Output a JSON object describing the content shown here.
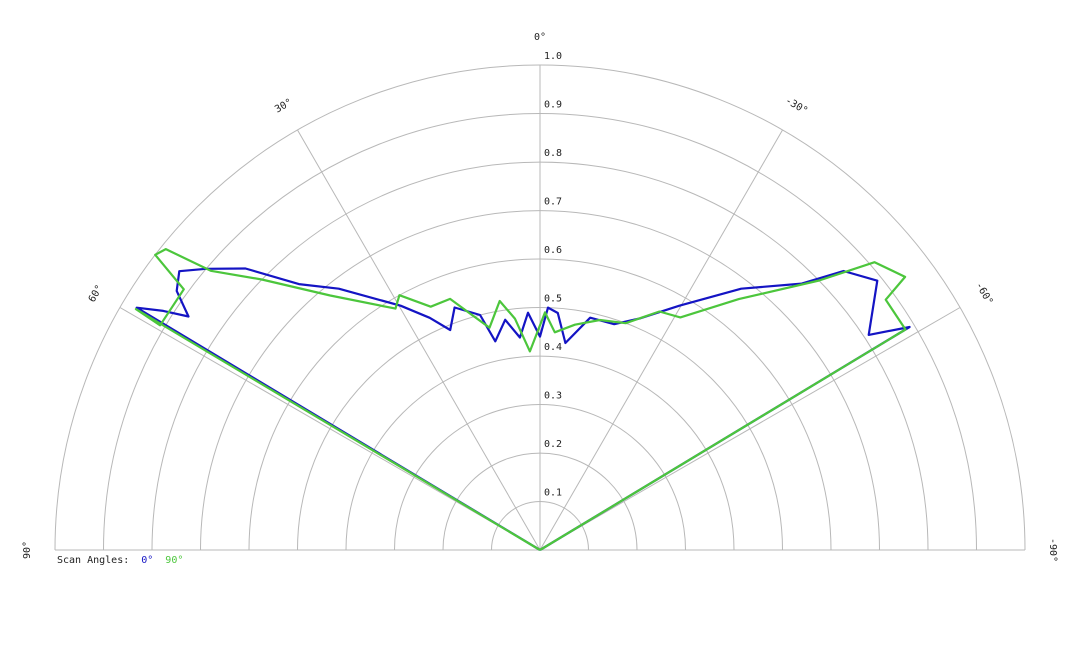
{
  "chart_data": {
    "type": "polar",
    "legend_title": "Scan Angles:",
    "grid": true,
    "xlim": [
      -90,
      90
    ],
    "xticks": [
      {
        "value": 90,
        "label": "90°"
      },
      {
        "value": 60,
        "label": "60°"
      },
      {
        "value": 30,
        "label": "30°"
      },
      {
        "value": 0,
        "label": "0°"
      },
      {
        "value": -30,
        "label": "-30°"
      },
      {
        "value": -60,
        "label": "-60°"
      },
      {
        "value": -90,
        "label": "-90°"
      }
    ],
    "ylim": [
      0,
      1
    ],
    "yticks": [
      0.1,
      0.2,
      0.3,
      0.4,
      0.5,
      0.6,
      0.7,
      0.8,
      0.9,
      {
        "value": 1,
        "label": "1.0"
      }
    ],
    "series": [
      {
        "name": "0°",
        "color": "#1414c4",
        "x": [
          59,
          59,
          57.6,
          56.4,
          54.5,
          52.3,
          49.9,
          46.3,
          42.2,
          37.6,
          29.7,
          25.4,
          22.2,
          19.4,
          14.3,
          12.1,
          8.6,
          5.4,
          2.9,
          0,
          -1.9,
          -4.3,
          -7.0,
          -12.2,
          -18.2,
          -23.3,
          -29.7,
          -37.6,
          -44.5,
          -47.4,
          -51.4,
          -56.8,
          -58.9,
          -59
        ],
        "values": [
          0,
          0.97,
          0.92,
          0.87,
          0.92,
          0.94,
          0.9,
          0.84,
          0.74,
          0.68,
          0.58,
          0.53,
          0.49,
          0.53,
          0.5,
          0.44,
          0.48,
          0.44,
          0.49,
          0.44,
          0.5,
          0.49,
          0.43,
          0.49,
          0.49,
          0.52,
          0.58,
          0.68,
          0.77,
          0.85,
          0.89,
          0.81,
          0.89,
          0
        ]
      },
      {
        "name": "90°",
        "color": "#4cc63c",
        "x": [
          60,
          59.2,
          59.4,
          53.8,
          52.5,
          51.2,
          49.7,
          45.8,
          39.5,
          30.9,
          28.9,
          24.2,
          19.7,
          16.6,
          12.8,
          9.2,
          6.2,
          2.9,
          -1.2,
          -3.9,
          -8.8,
          -14.6,
          -20.7,
          -26.6,
          -31.1,
          -38.4,
          -46.0,
          -49.3,
          -53.2,
          -54.1,
          -58.9,
          -59
        ],
        "values": [
          0,
          0.97,
          0.91,
          0.91,
          1.0,
          0.99,
          0.89,
          0.8,
          0.68,
          0.58,
          0.6,
          0.55,
          0.55,
          0.51,
          0.47,
          0.52,
          0.48,
          0.41,
          0.49,
          0.45,
          0.47,
          0.49,
          0.5,
          0.55,
          0.56,
          0.66,
          0.8,
          0.91,
          0.94,
          0.88,
          0.88,
          0
        ]
      }
    ]
  }
}
